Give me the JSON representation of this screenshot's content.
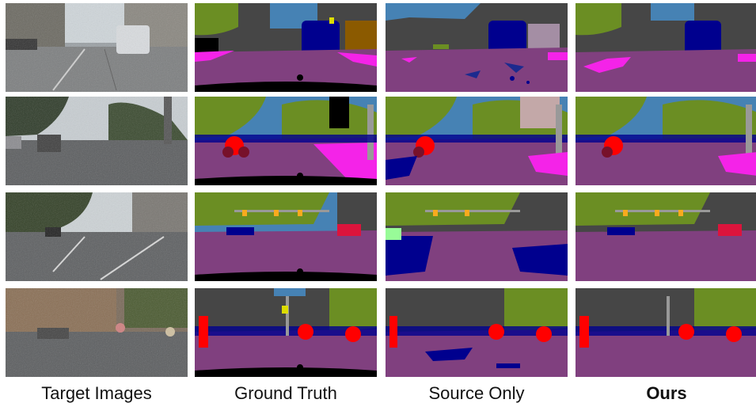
{
  "columns": [
    {
      "label": "Target Images",
      "bold": false
    },
    {
      "label": "Ground Truth",
      "bold": false
    },
    {
      "label": "Source Only",
      "bold": false
    },
    {
      "label": "Ours",
      "bold": true
    }
  ],
  "palette": {
    "road": "#80407f",
    "sidewalk": "#f423e8",
    "building": "#464646",
    "vegetation": "#6b8e23",
    "sky": "#4682b4",
    "car": "#00008e",
    "person": "#dc143c",
    "rider": "#ff0000",
    "pole": "#999999",
    "traffic_light": "#faaa1e",
    "traffic_sign": "#dcdc00",
    "bicycle": "#77112a",
    "ego_vehicle": "#000000"
  }
}
